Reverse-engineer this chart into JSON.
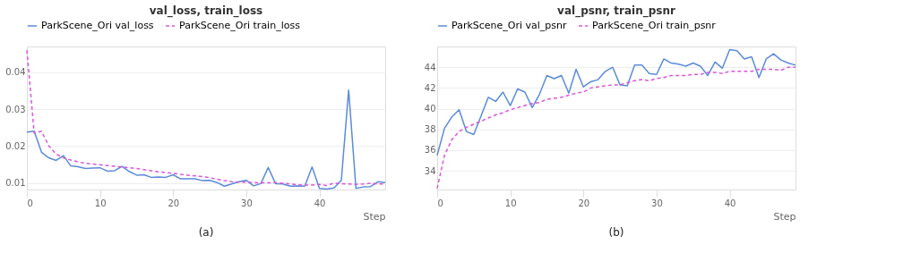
{
  "chart_data": [
    {
      "type": "line",
      "title": "val_loss, train_loss",
      "xlabel": "Step",
      "annotations": [
        "(a)"
      ],
      "legend": "top",
      "grid": "y",
      "xlim": [
        0,
        49
      ],
      "xticks": [
        0,
        10,
        20,
        30,
        40
      ],
      "ylim": [
        0.0082,
        0.047
      ],
      "yticks": [
        0.01,
        0.02,
        0.03,
        0.04
      ],
      "x": [
        0,
        1,
        2,
        3,
        4,
        5,
        6,
        7,
        8,
        9,
        10,
        11,
        12,
        13,
        14,
        15,
        16,
        17,
        18,
        19,
        20,
        21,
        22,
        23,
        24,
        25,
        26,
        27,
        28,
        29,
        30,
        31,
        32,
        33,
        34,
        35,
        36,
        37,
        38,
        39,
        40,
        41,
        42,
        43,
        44,
        45,
        46,
        47,
        48,
        49
      ],
      "series": [
        {
          "name": "ParkScene_Ori val_loss",
          "color": "#5b8bd9",
          "line_style": "solid",
          "values": [
            0.0238,
            0.024,
            0.0183,
            0.0168,
            0.0161,
            0.0174,
            0.0146,
            0.0144,
            0.0139,
            0.014,
            0.0141,
            0.0132,
            0.0133,
            0.0145,
            0.0131,
            0.0121,
            0.0122,
            0.0115,
            0.0116,
            0.0115,
            0.0122,
            0.0111,
            0.0111,
            0.0111,
            0.0106,
            0.0107,
            0.0101,
            0.0091,
            0.0097,
            0.0103,
            0.0107,
            0.0092,
            0.0098,
            0.0142,
            0.0098,
            0.0097,
            0.0091,
            0.0092,
            0.0091,
            0.0143,
            0.0085,
            0.0083,
            0.0086,
            0.0107,
            0.0352,
            0.0085,
            0.0089,
            0.009,
            0.0103,
            0.0101
          ]
        },
        {
          "name": "ParkScene_Ori train_loss",
          "color": "#d957d9",
          "line_style": "dashed",
          "values": [
            0.046,
            0.0235,
            0.024,
            0.02,
            0.0178,
            0.0168,
            0.0162,
            0.0157,
            0.0153,
            0.0151,
            0.0149,
            0.0147,
            0.0145,
            0.0143,
            0.0141,
            0.0139,
            0.0136,
            0.0133,
            0.013,
            0.0128,
            0.0126,
            0.0123,
            0.0121,
            0.0119,
            0.0117,
            0.0114,
            0.011,
            0.0106,
            0.0103,
            0.0102,
            0.0102,
            0.0101,
            0.01,
            0.01,
            0.0101,
            0.0099,
            0.0097,
            0.0095,
            0.0094,
            0.0094,
            0.0096,
            0.0093,
            0.0099,
            0.0098,
            0.0097,
            0.0096,
            0.0097,
            0.0099,
            0.0097,
            0.0097
          ]
        }
      ]
    },
    {
      "type": "line",
      "title": "val_psnr, train_psnr",
      "xlabel": "Step",
      "annotations": [
        "(b)"
      ],
      "legend": "top",
      "grid": "y",
      "xlim": [
        0,
        49
      ],
      "xticks": [
        0,
        10,
        20,
        30,
        40
      ],
      "ylim": [
        32.2,
        46
      ],
      "yticks": [
        34,
        36,
        38,
        40,
        42,
        44
      ],
      "x": [
        0,
        1,
        2,
        3,
        4,
        5,
        6,
        7,
        8,
        9,
        10,
        11,
        12,
        13,
        14,
        15,
        16,
        17,
        18,
        19,
        20,
        21,
        22,
        23,
        24,
        25,
        26,
        27,
        28,
        29,
        30,
        31,
        32,
        33,
        34,
        35,
        36,
        37,
        38,
        39,
        40,
        41,
        42,
        43,
        44,
        45,
        46,
        47,
        48,
        49
      ],
      "series": [
        {
          "name": "ParkScene_Ori val_psnr",
          "color": "#5b8bd9",
          "line_style": "solid",
          "values": [
            35.5,
            38.1,
            39.2,
            39.9,
            37.8,
            37.5,
            39.3,
            41.1,
            40.7,
            41.6,
            40.3,
            41.9,
            41.6,
            40.1,
            41.4,
            43.2,
            42.9,
            43.2,
            41.5,
            43.8,
            42.1,
            42.6,
            42.8,
            43.6,
            44.0,
            42.3,
            42.2,
            44.2,
            44.2,
            43.4,
            43.3,
            44.8,
            44.4,
            44.3,
            44.1,
            44.4,
            44.1,
            43.2,
            44.5,
            43.9,
            45.7,
            45.6,
            44.8,
            45.0,
            43.0,
            44.8,
            45.3,
            44.7,
            44.4,
            44.2
          ]
        },
        {
          "name": "ParkScene_Ori train_psnr",
          "color": "#d957d9",
          "line_style": "dashed",
          "values": [
            32.3,
            35.5,
            37.0,
            37.8,
            38.2,
            38.5,
            38.8,
            39.1,
            39.4,
            39.6,
            39.9,
            40.1,
            40.3,
            40.5,
            40.6,
            40.9,
            41.0,
            41.1,
            41.3,
            41.5,
            41.6,
            42.0,
            42.1,
            42.2,
            42.3,
            42.3,
            42.5,
            42.7,
            42.8,
            42.7,
            42.9,
            43.0,
            43.2,
            43.2,
            43.2,
            43.3,
            43.3,
            43.5,
            43.5,
            43.4,
            43.6,
            43.6,
            43.6,
            43.6,
            43.8,
            43.8,
            43.8,
            43.7,
            44.0,
            44.0
          ]
        }
      ]
    }
  ]
}
